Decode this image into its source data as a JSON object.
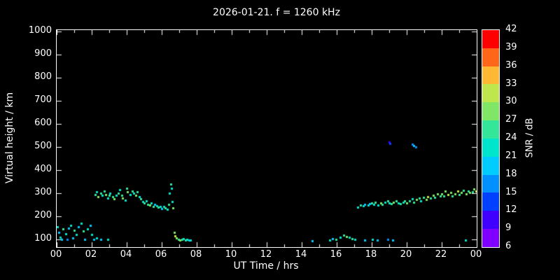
{
  "title": "2026-01-21. f = 1260 kHz",
  "chart_data": {
    "type": "scatter",
    "title": "2026-01-21. f = 1260 kHz",
    "xlabel": "UT Time / hrs",
    "ylabel": "Virtual height / km",
    "colorbar_label": "SNR / dB",
    "xlim": [
      0,
      24
    ],
    "ylim": [
      100,
      1000
    ],
    "grid": false,
    "x_tick_labels": [
      "00",
      "02",
      "04",
      "06",
      "08",
      "10",
      "12",
      "14",
      "16",
      "18",
      "20",
      "22",
      "00"
    ],
    "x_tick_hours": [
      0,
      2,
      4,
      6,
      8,
      10,
      12,
      14,
      16,
      18,
      20,
      22,
      24
    ],
    "y_ticks": [
      100,
      200,
      300,
      400,
      500,
      600,
      700,
      800,
      900,
      1000
    ],
    "colorbar_ticks": [
      6,
      9,
      12,
      15,
      18,
      21,
      24,
      27,
      30,
      33,
      36,
      39,
      42
    ],
    "colorbar_colors_low_to_high": [
      "#8000ff",
      "#4000ff",
      "#0040ff",
      "#0090ff",
      "#00ccff",
      "#00e6cc",
      "#33e699",
      "#80e666",
      "#c0e64d",
      "#ffb833",
      "#ff6619",
      "#ff0000"
    ],
    "point_units": [
      "time_hours",
      "virtual_height_km",
      "snr_db"
    ],
    "points": [
      [
        0.05,
        155,
        21
      ],
      [
        0.1,
        130,
        18
      ],
      [
        0.2,
        110,
        21
      ],
      [
        0.3,
        100,
        18
      ],
      [
        0.35,
        145,
        24
      ],
      [
        0.5,
        125,
        21
      ],
      [
        0.6,
        100,
        15
      ],
      [
        0.7,
        150,
        18
      ],
      [
        0.8,
        160,
        21
      ],
      [
        0.9,
        105,
        18
      ],
      [
        1.0,
        140,
        24
      ],
      [
        1.1,
        120,
        21
      ],
      [
        1.25,
        155,
        18
      ],
      [
        1.4,
        170,
        21
      ],
      [
        1.5,
        135,
        24
      ],
      [
        1.6,
        100,
        18
      ],
      [
        1.75,
        145,
        21
      ],
      [
        1.9,
        160,
        18
      ],
      [
        2.0,
        120,
        21
      ],
      [
        2.1,
        100,
        18
      ],
      [
        2.3,
        105,
        21
      ],
      [
        2.5,
        100,
        18
      ],
      [
        2.9,
        100,
        21
      ],
      [
        2.2,
        295,
        24
      ],
      [
        2.3,
        305,
        21
      ],
      [
        2.35,
        285,
        27
      ],
      [
        2.5,
        300,
        24
      ],
      [
        2.6,
        290,
        21
      ],
      [
        2.7,
        310,
        24
      ],
      [
        2.8,
        295,
        27
      ],
      [
        2.9,
        280,
        21
      ],
      [
        3.0,
        290,
        24
      ],
      [
        3.05,
        300,
        21
      ],
      [
        3.2,
        285,
        24
      ],
      [
        3.3,
        275,
        27
      ],
      [
        3.4,
        290,
        21
      ],
      [
        3.5,
        300,
        24
      ],
      [
        3.6,
        315,
        21
      ],
      [
        3.7,
        290,
        24
      ],
      [
        3.75,
        280,
        27
      ],
      [
        3.9,
        270,
        21
      ],
      [
        4.0,
        320,
        24
      ],
      [
        4.05,
        305,
        27
      ],
      [
        4.2,
        295,
        21
      ],
      [
        4.3,
        310,
        24
      ],
      [
        4.4,
        300,
        21
      ],
      [
        4.5,
        290,
        27
      ],
      [
        4.6,
        305,
        24
      ],
      [
        4.7,
        285,
        21
      ],
      [
        4.8,
        275,
        24
      ],
      [
        4.9,
        265,
        21
      ],
      [
        5.0,
        258,
        24
      ],
      [
        5.1,
        268,
        21
      ],
      [
        5.2,
        252,
        24
      ],
      [
        5.3,
        248,
        27
      ],
      [
        5.4,
        258,
        21
      ],
      [
        5.5,
        242,
        24
      ],
      [
        5.6,
        252,
        18
      ],
      [
        5.7,
        246,
        21
      ],
      [
        5.8,
        238,
        24
      ],
      [
        5.9,
        242,
        21
      ],
      [
        6.0,
        232,
        18
      ],
      [
        6.1,
        242,
        21
      ],
      [
        6.2,
        236,
        24
      ],
      [
        6.3,
        230,
        21
      ],
      [
        6.4,
        252,
        24
      ],
      [
        6.45,
        300,
        21
      ],
      [
        6.5,
        340,
        24
      ],
      [
        6.55,
        320,
        21
      ],
      [
        6.6,
        265,
        21
      ],
      [
        6.62,
        235,
        27
      ],
      [
        6.7,
        130,
        27
      ],
      [
        6.75,
        115,
        30
      ],
      [
        6.85,
        105,
        27
      ],
      [
        6.95,
        100,
        24
      ],
      [
        7.05,
        98,
        27
      ],
      [
        7.15,
        100,
        24
      ],
      [
        7.25,
        102,
        21
      ],
      [
        7.35,
        98,
        24
      ],
      [
        7.45,
        100,
        21
      ],
      [
        7.55,
        96,
        18
      ],
      [
        7.65,
        98,
        21
      ],
      [
        14.6,
        95,
        18
      ],
      [
        15.6,
        98,
        21
      ],
      [
        15.75,
        104,
        18
      ],
      [
        15.95,
        100,
        24
      ],
      [
        16.2,
        108,
        21
      ],
      [
        16.4,
        118,
        24
      ],
      [
        16.55,
        112,
        27
      ],
      [
        16.7,
        108,
        21
      ],
      [
        16.9,
        104,
        24
      ],
      [
        17.05,
        100,
        21
      ],
      [
        17.6,
        98,
        18
      ],
      [
        18.05,
        100,
        21
      ],
      [
        18.3,
        96,
        18
      ],
      [
        18.9,
        100,
        15
      ],
      [
        19.2,
        98,
        18
      ],
      [
        23.35,
        96,
        21
      ],
      [
        17.2,
        238,
        21
      ],
      [
        17.35,
        248,
        24
      ],
      [
        17.5,
        244,
        21
      ],
      [
        17.6,
        252,
        18
      ],
      [
        17.8,
        248,
        21
      ],
      [
        17.9,
        255,
        18
      ],
      [
        18.0,
        258,
        24
      ],
      [
        18.1,
        252,
        21
      ],
      [
        18.2,
        262,
        24
      ],
      [
        18.35,
        250,
        21
      ],
      [
        18.5,
        258,
        27
      ],
      [
        18.6,
        253,
        24
      ],
      [
        18.75,
        262,
        21
      ],
      [
        18.9,
        268,
        24
      ],
      [
        19.0,
        258,
        21
      ],
      [
        19.1,
        254,
        24
      ],
      [
        19.25,
        262,
        27
      ],
      [
        19.4,
        268,
        24
      ],
      [
        19.5,
        258,
        21
      ],
      [
        19.65,
        254,
        24
      ],
      [
        19.8,
        262,
        21
      ],
      [
        19.9,
        268,
        24
      ],
      [
        20.0,
        258,
        27
      ],
      [
        20.15,
        266,
        24
      ],
      [
        20.3,
        276,
        21
      ],
      [
        20.4,
        262,
        24
      ],
      [
        20.55,
        272,
        27
      ],
      [
        20.7,
        278,
        24
      ],
      [
        20.8,
        268,
        21
      ],
      [
        20.95,
        282,
        24
      ],
      [
        21.1,
        272,
        27
      ],
      [
        21.2,
        286,
        30
      ],
      [
        21.35,
        278,
        24
      ],
      [
        21.5,
        292,
        27
      ],
      [
        21.6,
        282,
        24
      ],
      [
        21.75,
        296,
        27
      ],
      [
        21.9,
        288,
        24
      ],
      [
        22.0,
        298,
        27
      ],
      [
        22.1,
        288,
        24
      ],
      [
        22.2,
        308,
        27
      ],
      [
        22.35,
        294,
        30
      ],
      [
        22.5,
        302,
        27
      ],
      [
        22.6,
        288,
        24
      ],
      [
        22.75,
        298,
        27
      ],
      [
        22.9,
        308,
        30
      ],
      [
        23.0,
        294,
        24
      ],
      [
        23.1,
        302,
        27
      ],
      [
        23.25,
        312,
        24
      ],
      [
        23.4,
        298,
        27
      ],
      [
        23.5,
        308,
        24
      ],
      [
        23.6,
        302,
        27
      ],
      [
        23.75,
        306,
        24
      ],
      [
        23.85,
        318,
        27
      ],
      [
        23.95,
        310,
        30
      ],
      [
        19.0,
        522,
        9
      ],
      [
        19.05,
        516,
        12
      ],
      [
        20.3,
        512,
        15
      ],
      [
        20.4,
        505,
        18
      ],
      [
        20.5,
        500,
        15
      ]
    ],
    "colors": {
      "background": "#000000",
      "foreground": "#ffffff"
    }
  }
}
